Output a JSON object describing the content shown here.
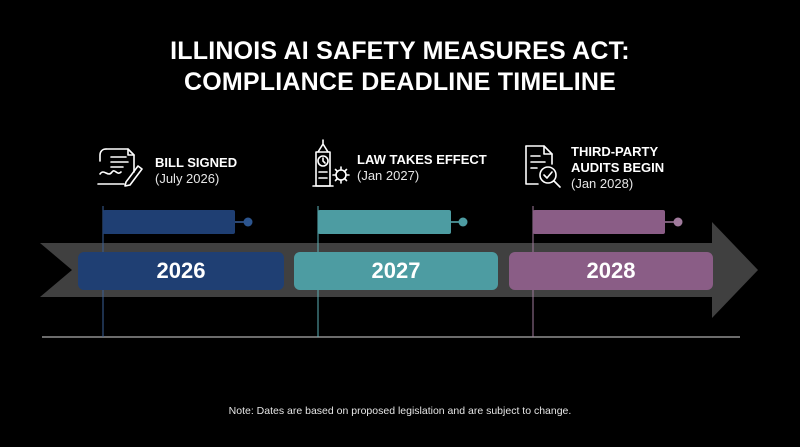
{
  "title": {
    "line1": "ILLINOIS AI SAFETY MEASURES ACT:",
    "line2": "COMPLIANCE DEADLINE TIMELINE"
  },
  "milestones": [
    {
      "name": "BILL SIGNED",
      "date": "(July 2026)",
      "icon": "signed-document-icon",
      "color": "#1f3f73"
    },
    {
      "name": "LAW TAKES EFFECT",
      "date": "(Jan 2027)",
      "icon": "clock-tower-gear-icon",
      "color": "#4d9ca2"
    },
    {
      "name_line1": "THIRD-PARTY",
      "name_line2": "AUDITS BEGIN",
      "date": "(Jan 2028)",
      "icon": "audit-checklist-magnifier-icon",
      "color": "#8a5d86"
    }
  ],
  "years": [
    "2026",
    "2027",
    "2028"
  ],
  "note": "Note: Dates are based on proposed legislation and are subject to change."
}
